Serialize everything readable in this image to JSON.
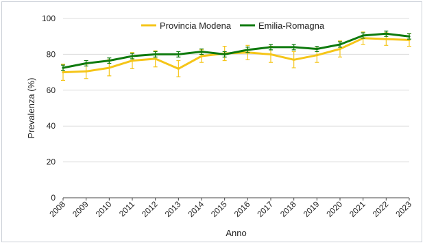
{
  "chart_data": {
    "type": "line",
    "x": [
      "2008",
      "2009",
      "2010",
      "2011",
      "2012",
      "2013",
      "2014",
      "2015",
      "2016",
      "2017",
      "2018",
      "2019",
      "2020",
      "2021",
      "2022",
      "2023"
    ],
    "xlabel": "Anno",
    "ylabel": "Prevalenza (%)",
    "ylim": [
      0,
      100
    ],
    "yticks": [
      0,
      20,
      40,
      60,
      80,
      100
    ],
    "grid": "horizontal",
    "legend_position": "top",
    "series": [
      {
        "name": "Provincia Modena",
        "color": "#F5C518",
        "values": [
          70.0,
          70.5,
          72.5,
          76.5,
          77.5,
          72.0,
          79.0,
          80.5,
          81.0,
          80.0,
          77.0,
          79.5,
          83.0,
          89.0,
          88.5,
          88.0
        ],
        "err": [
          4.5,
          4.0,
          4.5,
          4.5,
          4.5,
          4.5,
          3.5,
          4.0,
          4.0,
          4.5,
          4.5,
          4.0,
          4.5,
          3.5,
          3.5,
          3.5
        ]
      },
      {
        "name": "Emilia-Romagna",
        "color": "#0E7A0D",
        "values": [
          72.5,
          75.0,
          76.5,
          79.0,
          80.0,
          80.0,
          81.5,
          80.0,
          82.5,
          84.0,
          84.0,
          83.0,
          85.5,
          90.5,
          91.5,
          90.0
        ],
        "err": [
          1.5,
          1.5,
          1.5,
          1.5,
          1.5,
          1.5,
          1.5,
          1.5,
          1.5,
          1.5,
          1.5,
          1.5,
          1.5,
          1.5,
          1.5,
          1.5
        ]
      }
    ]
  }
}
